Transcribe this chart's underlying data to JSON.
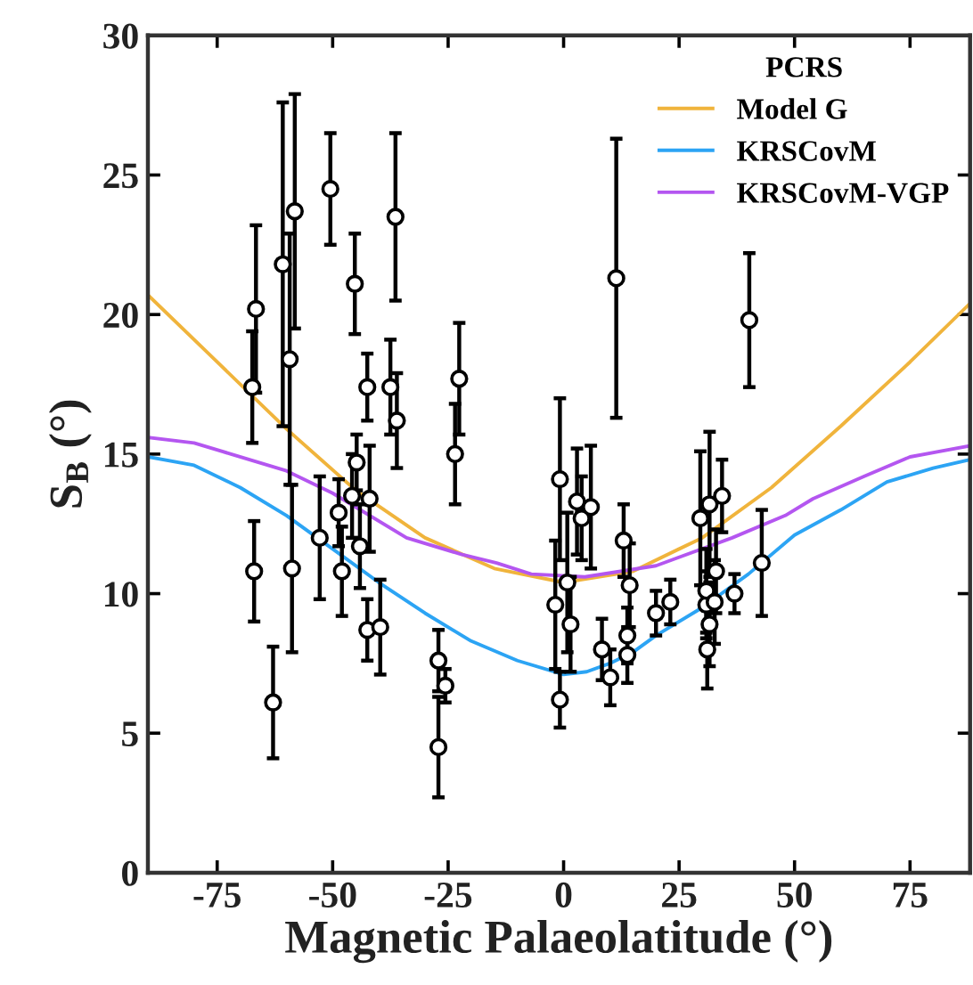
{
  "chart_data": {
    "type": "scatter",
    "xlabel": "Magnetic Palaeolatitude (°)",
    "ylabel": "S$_{B}$ (°)",
    "legend_title": "PCRS",
    "legend": "top right",
    "grid": false,
    "xlim": [
      -90,
      88
    ],
    "xticks": [
      -75,
      -50,
      -25,
      0,
      25,
      50,
      75
    ],
    "ylim": [
      0,
      30
    ],
    "yticks": [
      0,
      5,
      10,
      15,
      20,
      25,
      30
    ],
    "series": [
      {
        "color": "#000000",
        "marker": "circle",
        "x": [
          -66.6,
          -67.4,
          -67,
          -60.8,
          -58.2,
          -59.3,
          -58.8,
          -50.5,
          -45.2,
          -36.4,
          -42.5,
          -37.5,
          -36.1,
          -22.6,
          -23.5,
          -62.9,
          -52.8,
          -48.7,
          -48,
          -45.8,
          -44.8,
          -44.1,
          -42,
          -42.5,
          -39.7,
          -27.1,
          -25.6,
          -27.1,
          11.4,
          40.2,
          -0.8,
          2.9,
          3.9,
          5.9,
          29.6,
          31.6,
          34.3,
          13,
          -1.8,
          0.8,
          1.5,
          -0.8,
          14.3,
          8.3,
          10.1,
          13.8,
          13.8,
          20,
          23.1,
          30.9,
          30.9,
          31.6,
          31.1,
          33,
          32.7,
          37,
          42.9
        ],
        "values": [
          20.2,
          17.4,
          10.8,
          21.8,
          23.7,
          18.4,
          10.9,
          24.5,
          21.1,
          23.5,
          17.4,
          17.4,
          16.2,
          17.7,
          15.0,
          6.1,
          12.0,
          12.9,
          10.8,
          13.5,
          14.7,
          11.7,
          13.4,
          8.7,
          8.8,
          7.6,
          6.7,
          4.5,
          21.3,
          19.8,
          14.1,
          13.3,
          12.7,
          13.1,
          12.7,
          13.2,
          13.5,
          11.9,
          9.6,
          10.4,
          8.9,
          6.2,
          10.3,
          8.0,
          7.0,
          8.5,
          7.8,
          9.3,
          9.7,
          9.6,
          10.1,
          8.9,
          8.0,
          10.8,
          9.7,
          10.0,
          11.1
        ],
        "errors": [
          3,
          2,
          1.8,
          5.8,
          4.2,
          4.5,
          3,
          2,
          1.8,
          3,
          1.2,
          1.7,
          1.7,
          2,
          1.8,
          2,
          2.2,
          1.2,
          1.6,
          1.5,
          1,
          1.5,
          1.9,
          1.1,
          1.7,
          1.1,
          0.6,
          1.8,
          5,
          2.4,
          2.9,
          1.9,
          1.5,
          2.2,
          2.4,
          2.6,
          1.3,
          1.3,
          2.3,
          2.5,
          1.7,
          1,
          1.5,
          1.1,
          1,
          1,
          1,
          0.8,
          0.8,
          1.2,
          1.5,
          1.5,
          1.4,
          1.5,
          1.5,
          0.7,
          1.9
        ]
      },
      {
        "type": "line",
        "name": "Model G",
        "color": "#f0b43c",
        "x": [
          -90,
          -75,
          -60,
          -45,
          -30,
          -15,
          0,
          15,
          30,
          45,
          60,
          75,
          88
        ],
        "values": [
          20.7,
          18.3,
          15.9,
          13.7,
          12.0,
          10.9,
          10.4,
          10.8,
          12.0,
          13.8,
          16.0,
          18.3,
          20.4
        ]
      },
      {
        "type": "line",
        "name": "KRSCovM",
        "color": "#2ca4f4",
        "x": [
          -90,
          -80,
          -70,
          -60,
          -50,
          -40,
          -30,
          -20,
          -10,
          0,
          5,
          10,
          15,
          20,
          30,
          40,
          50,
          60,
          70,
          80,
          88
        ],
        "values": [
          14.9,
          14.6,
          13.8,
          12.8,
          11.6,
          10.4,
          9.3,
          8.3,
          7.6,
          7.1,
          7.2,
          7.5,
          7.9,
          8.5,
          9.5,
          10.7,
          12.1,
          13.0,
          14.0,
          14.5,
          14.8
        ]
      },
      {
        "type": "line",
        "name": "KRSCovM-VGP",
        "color": "#b456f0",
        "x": [
          -90,
          -80,
          -72,
          -60,
          -50,
          -34,
          -22,
          -14.5,
          -7,
          4.6,
          20,
          36.5,
          48,
          54,
          65,
          75,
          88
        ],
        "values": [
          15.6,
          15.4,
          15.0,
          14.4,
          13.6,
          12.0,
          11.4,
          11.1,
          10.7,
          10.6,
          11.0,
          12.0,
          12.8,
          13.4,
          14.2,
          14.9,
          15.3
        ]
      }
    ]
  }
}
